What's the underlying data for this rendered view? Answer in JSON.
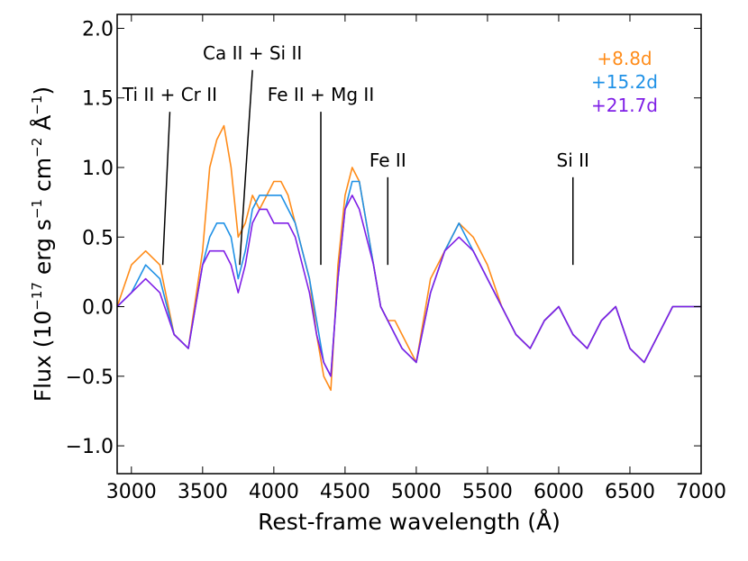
{
  "chart_data": {
    "type": "line",
    "xlabel": "Rest-frame wavelength (Å)",
    "ylabel": {
      "prefix": "Flux (10",
      "exp1": "−17",
      "mid1": " erg s",
      "exp2": "−1",
      "mid2": " cm",
      "exp3": "−2",
      "mid3": " Å",
      "exp4": "−1",
      "suffix": ")"
    },
    "xlim": [
      2900,
      7000
    ],
    "ylim": [
      -1.2,
      2.1
    ],
    "xticks": [
      3000,
      3500,
      4000,
      4500,
      5000,
      5500,
      6000,
      6500,
      7000
    ],
    "xtick_labels": [
      "3000",
      "3500",
      "4000",
      "4500",
      "5000",
      "5500",
      "6000",
      "6500",
      "7000"
    ],
    "yticks": [
      -1.0,
      -0.5,
      0.0,
      0.5,
      1.0,
      1.5,
      2.0
    ],
    "ytick_labels": [
      "−1.0",
      "−0.5",
      "0.0",
      "0.5",
      "1.0",
      "1.5",
      "2.0"
    ],
    "grid": false,
    "legend": "top-right",
    "series": [
      {
        "name": "+8.8d",
        "color": "#ff8c1a",
        "x": [
          2900,
          3000,
          3100,
          3200,
          3300,
          3400,
          3500,
          3550,
          3600,
          3650,
          3700,
          3750,
          3800,
          3850,
          3900,
          3950,
          4000,
          4050,
          4100,
          4150,
          4200,
          4250,
          4300,
          4350,
          4400,
          4450,
          4500,
          4550,
          4600,
          4650,
          4700,
          4750,
          4800,
          4850,
          4900,
          5000,
          5100,
          5200,
          5300,
          5400,
          5500,
          5600,
          5700,
          5800,
          5900,
          6000,
          6100,
          6200,
          6300,
          6400,
          6500,
          6600,
          6700,
          6800,
          6900,
          7000
        ],
        "y": [
          0.0,
          0.3,
          0.4,
          0.3,
          -0.2,
          -0.3,
          0.4,
          1.0,
          1.2,
          1.3,
          1.0,
          0.5,
          0.6,
          0.8,
          0.7,
          0.8,
          0.9,
          0.9,
          0.8,
          0.6,
          0.4,
          0.2,
          -0.2,
          -0.5,
          -0.6,
          0.3,
          0.8,
          1.0,
          0.9,
          0.6,
          0.3,
          0.0,
          -0.1,
          -0.1,
          -0.2,
          -0.4,
          0.2,
          0.4,
          0.6,
          0.5,
          0.3,
          0.0,
          -0.2,
          -0.3,
          -0.1,
          0.0,
          -0.2,
          -0.3,
          -0.1,
          0.0,
          -0.3,
          -0.4,
          -0.2,
          0.0,
          0.0,
          0.0
        ]
      },
      {
        "name": "+15.2d",
        "color": "#1f91e6",
        "x": [
          2900,
          3000,
          3100,
          3200,
          3300,
          3400,
          3500,
          3550,
          3600,
          3650,
          3700,
          3750,
          3800,
          3850,
          3900,
          3950,
          4000,
          4050,
          4100,
          4150,
          4200,
          4250,
          4300,
          4350,
          4400,
          4450,
          4500,
          4550,
          4600,
          4650,
          4700,
          4750,
          4800,
          4850,
          4900,
          5000,
          5100,
          5200,
          5300,
          5400,
          5500,
          5600,
          5700,
          5800,
          5900,
          6000,
          6100,
          6200,
          6300,
          6400,
          6500,
          6600,
          6700,
          6800,
          6900,
          7000
        ],
        "y": [
          0.0,
          0.1,
          0.3,
          0.2,
          -0.2,
          -0.3,
          0.3,
          0.5,
          0.6,
          0.6,
          0.5,
          0.2,
          0.4,
          0.7,
          0.8,
          0.8,
          0.8,
          0.8,
          0.7,
          0.6,
          0.4,
          0.2,
          -0.1,
          -0.4,
          -0.5,
          0.2,
          0.7,
          0.9,
          0.9,
          0.6,
          0.3,
          0.0,
          -0.1,
          -0.2,
          -0.3,
          -0.4,
          0.1,
          0.4,
          0.6,
          0.4,
          0.2,
          0.0,
          -0.2,
          -0.3,
          -0.1,
          0.0,
          -0.2,
          -0.3,
          -0.1,
          0.0,
          -0.3,
          -0.4,
          -0.2,
          0.0,
          0.0,
          0.0
        ]
      },
      {
        "name": "+21.7d",
        "color": "#7f1fe6",
        "x": [
          2900,
          3000,
          3100,
          3200,
          3300,
          3400,
          3500,
          3550,
          3600,
          3650,
          3700,
          3750,
          3800,
          3850,
          3900,
          3950,
          4000,
          4050,
          4100,
          4150,
          4200,
          4250,
          4300,
          4350,
          4400,
          4450,
          4500,
          4550,
          4600,
          4650,
          4700,
          4750,
          4800,
          4850,
          4900,
          5000,
          5100,
          5200,
          5300,
          5400,
          5500,
          5600,
          5700,
          5800,
          5900,
          6000,
          6100,
          6200,
          6300,
          6400,
          6500,
          6600,
          6700,
          6800,
          6900,
          7000
        ],
        "y": [
          0.0,
          0.1,
          0.2,
          0.1,
          -0.2,
          -0.3,
          0.3,
          0.4,
          0.4,
          0.4,
          0.3,
          0.1,
          0.3,
          0.6,
          0.7,
          0.7,
          0.6,
          0.6,
          0.6,
          0.5,
          0.3,
          0.1,
          -0.2,
          -0.4,
          -0.5,
          0.2,
          0.7,
          0.8,
          0.7,
          0.5,
          0.3,
          0.0,
          -0.1,
          -0.2,
          -0.3,
          -0.4,
          0.1,
          0.4,
          0.5,
          0.4,
          0.2,
          0.0,
          -0.2,
          -0.3,
          -0.1,
          0.0,
          -0.2,
          -0.3,
          -0.1,
          0.0,
          -0.3,
          -0.4,
          -0.2,
          0.0,
          0.0,
          0.0
        ]
      }
    ],
    "annotations": [
      {
        "label": "Ti II + Cr II",
        "x1": 3270,
        "y1": 1.4,
        "x2": 3220,
        "y2": 0.3
      },
      {
        "label": "Ca II + Si II",
        "x1": 3850,
        "y1": 1.7,
        "x2": 3760,
        "y2": 0.3
      },
      {
        "label": "Fe II + Mg II",
        "x1": 4330,
        "y1": 1.4,
        "x2": 4330,
        "y2": 0.3
      },
      {
        "label": "Fe II",
        "x1": 4800,
        "y1": 0.93,
        "x2": 4800,
        "y2": 0.3
      },
      {
        "label": "Si II",
        "x1": 6100,
        "y1": 0.93,
        "x2": 6100,
        "y2": 0.3
      }
    ]
  }
}
